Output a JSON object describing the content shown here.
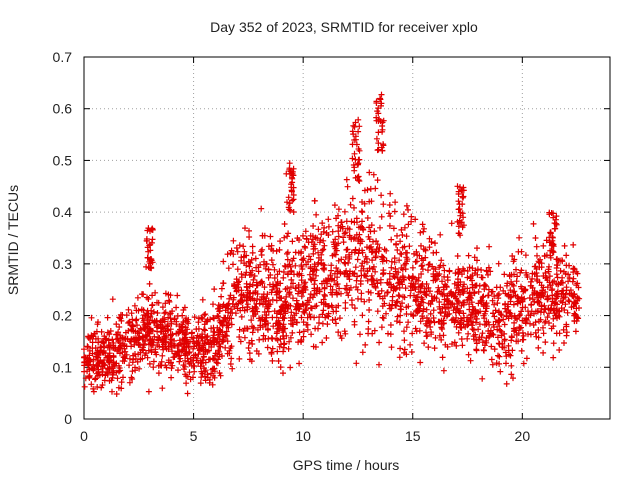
{
  "chart_data": {
    "type": "scatter",
    "title": "Day 352 of 2023, SRMTID for receiver xplo",
    "xlabel": "GPS time / hours",
    "ylabel": "SRMTID / TECUs",
    "xlim": [
      0,
      24
    ],
    "ylim": [
      0,
      0.7
    ],
    "xticks": [
      0,
      5,
      10,
      15,
      20
    ],
    "yticks": [
      0,
      0.1,
      0.2,
      0.3,
      0.4,
      0.5,
      0.6,
      0.7
    ],
    "xtick_labels": [
      "0",
      "5",
      "10",
      "15",
      "20"
    ],
    "ytick_labels": [
      "0",
      "0.1",
      "0.2",
      "0.3",
      "0.4",
      "0.5",
      "0.6",
      "0.7"
    ],
    "grid": true,
    "marker": "+",
    "color": "#e00000",
    "points_note": "dense point cloud sampled from approximate trend",
    "trend": [
      {
        "x": 0.0,
        "y": 0.12,
        "spread": 0.04
      },
      {
        "x": 1.0,
        "y": 0.12,
        "spread": 0.05
      },
      {
        "x": 2.0,
        "y": 0.15,
        "spread": 0.05
      },
      {
        "x": 3.0,
        "y": 0.17,
        "spread": 0.06
      },
      {
        "x": 4.0,
        "y": 0.16,
        "spread": 0.05
      },
      {
        "x": 5.0,
        "y": 0.13,
        "spread": 0.05
      },
      {
        "x": 6.0,
        "y": 0.15,
        "spread": 0.06
      },
      {
        "x": 7.0,
        "y": 0.24,
        "spread": 0.08
      },
      {
        "x": 8.0,
        "y": 0.24,
        "spread": 0.08
      },
      {
        "x": 9.0,
        "y": 0.22,
        "spread": 0.09
      },
      {
        "x": 10.0,
        "y": 0.26,
        "spread": 0.09
      },
      {
        "x": 11.0,
        "y": 0.27,
        "spread": 0.09
      },
      {
        "x": 12.0,
        "y": 0.3,
        "spread": 0.1
      },
      {
        "x": 13.0,
        "y": 0.32,
        "spread": 0.11
      },
      {
        "x": 14.0,
        "y": 0.28,
        "spread": 0.1
      },
      {
        "x": 15.0,
        "y": 0.26,
        "spread": 0.09
      },
      {
        "x": 16.0,
        "y": 0.24,
        "spread": 0.08
      },
      {
        "x": 17.0,
        "y": 0.22,
        "spread": 0.07
      },
      {
        "x": 18.0,
        "y": 0.22,
        "spread": 0.07
      },
      {
        "x": 19.0,
        "y": 0.18,
        "spread": 0.07
      },
      {
        "x": 20.0,
        "y": 0.22,
        "spread": 0.07
      },
      {
        "x": 21.0,
        "y": 0.25,
        "spread": 0.08
      },
      {
        "x": 22.0,
        "y": 0.24,
        "spread": 0.07
      },
      {
        "x": 22.6,
        "y": 0.23,
        "spread": 0.06
      }
    ],
    "bursts": [
      {
        "x": 3.0,
        "y": 0.33,
        "spread": 0.04
      },
      {
        "x": 9.4,
        "y": 0.45,
        "spread": 0.05
      },
      {
        "x": 12.4,
        "y": 0.52,
        "spread": 0.06
      },
      {
        "x": 13.5,
        "y": 0.56,
        "spread": 0.07
      },
      {
        "x": 17.2,
        "y": 0.4,
        "spread": 0.05
      },
      {
        "x": 21.4,
        "y": 0.36,
        "spread": 0.04
      }
    ]
  }
}
